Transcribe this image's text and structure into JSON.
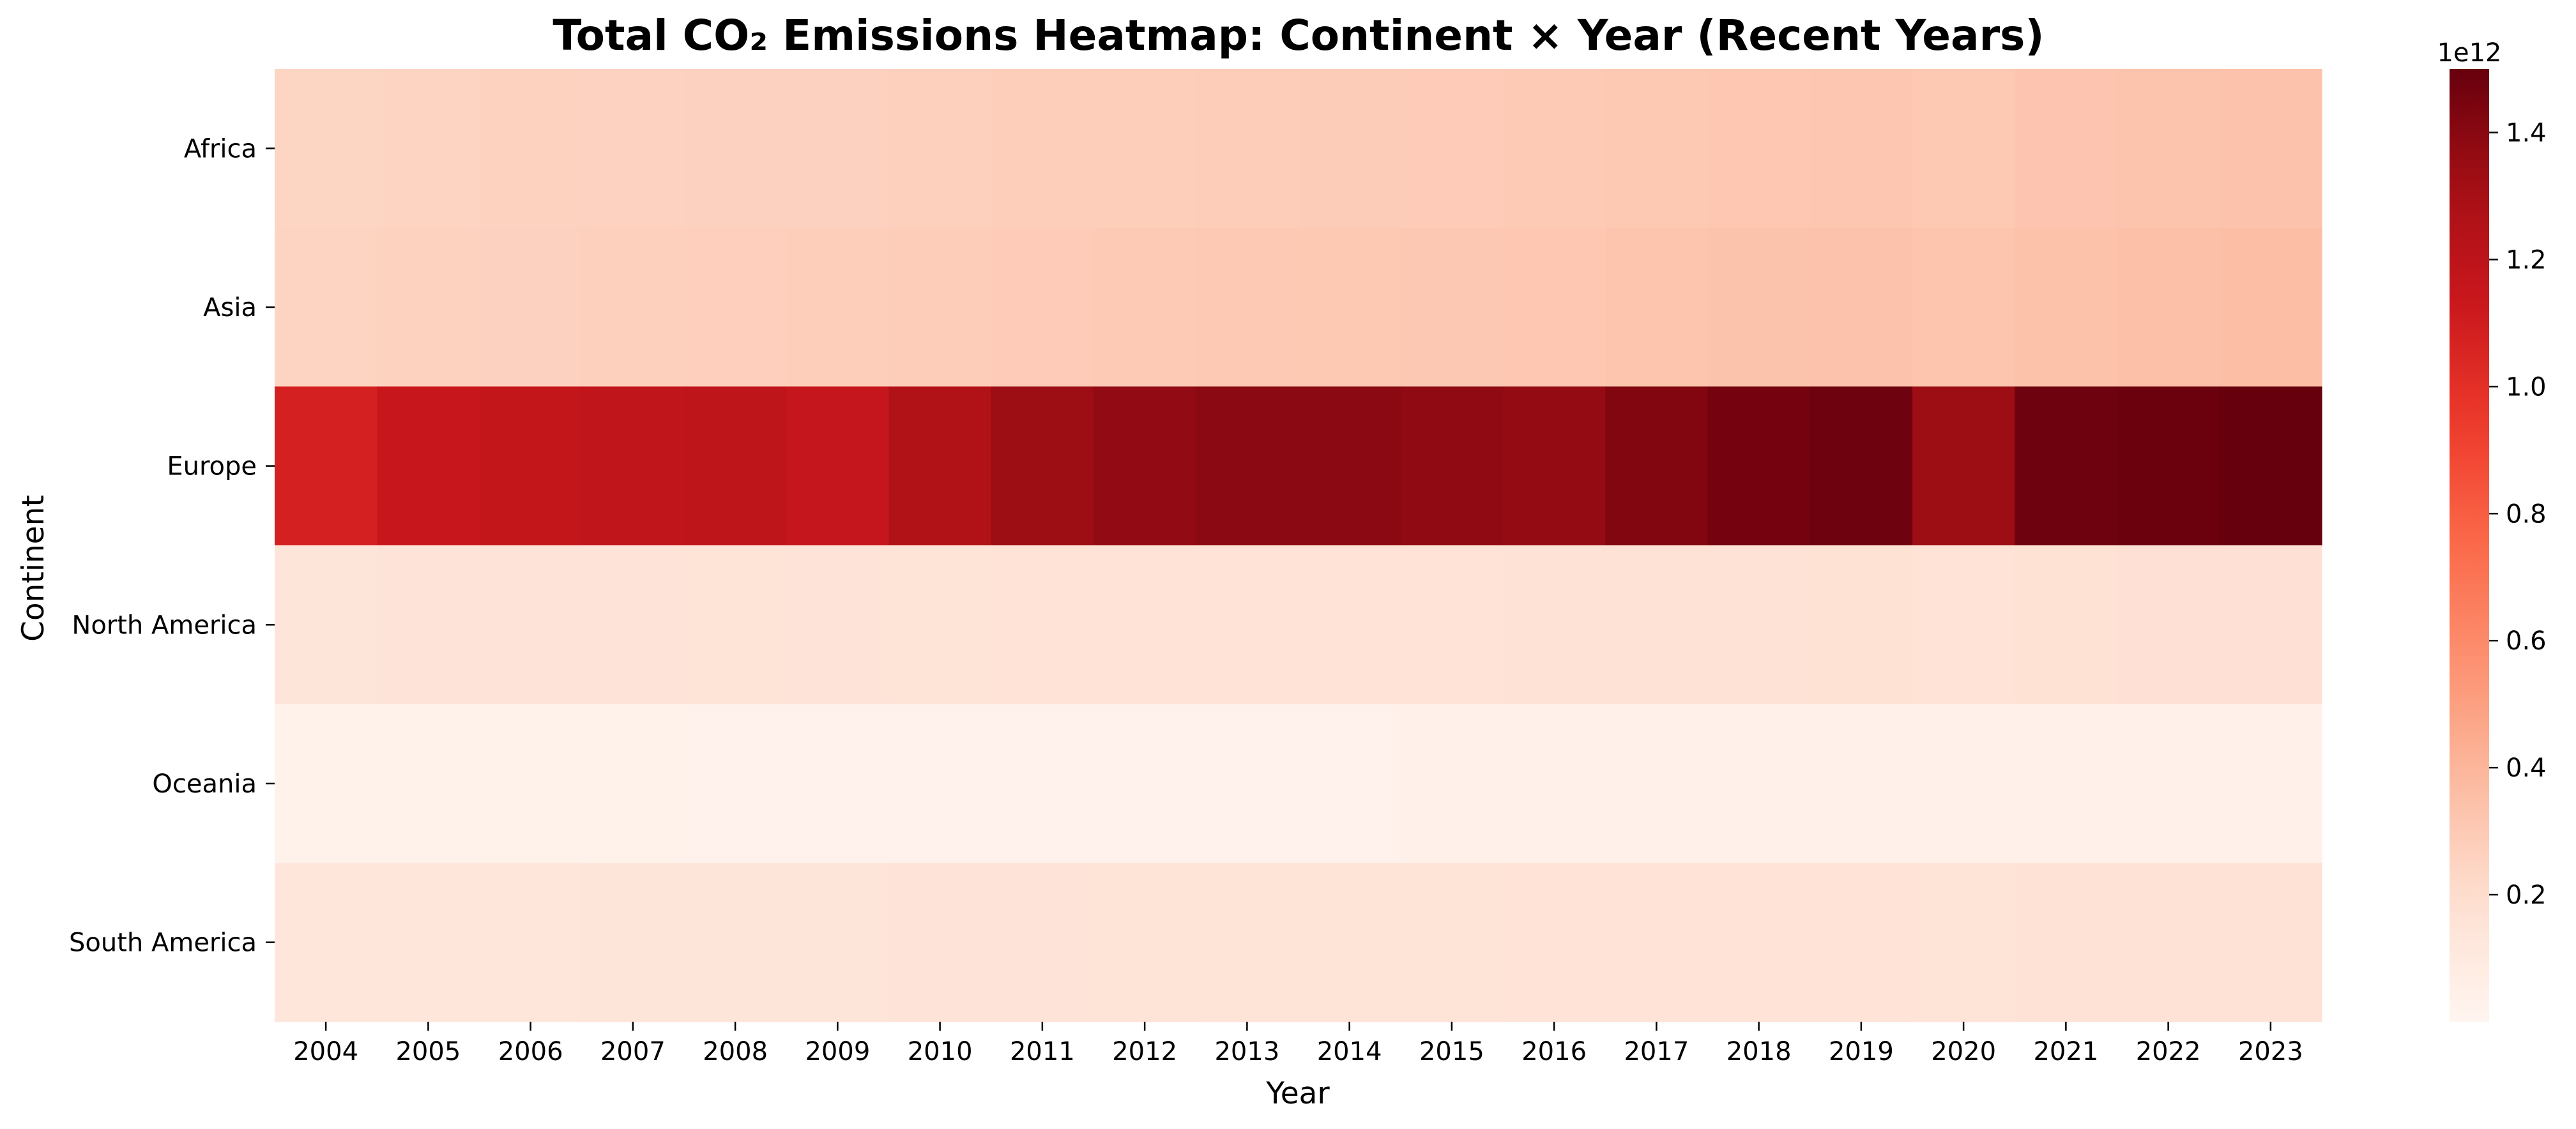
{
  "chart_data": {
    "type": "heatmap",
    "title": "Total CO₂ Emissions Heatmap: Continent × Year (Recent Years)",
    "xlabel": "Year",
    "ylabel": "Continent",
    "x": [
      "2004",
      "2005",
      "2006",
      "2007",
      "2008",
      "2009",
      "2010",
      "2011",
      "2012",
      "2013",
      "2014",
      "2015",
      "2016",
      "2017",
      "2018",
      "2019",
      "2020",
      "2021",
      "2022",
      "2023"
    ],
    "y": [
      "Africa",
      "Asia",
      "Europe",
      "North America",
      "Oceania",
      "South America"
    ],
    "values": [
      [
        0.245,
        0.25,
        0.255,
        0.258,
        0.262,
        0.262,
        0.268,
        0.275,
        0.28,
        0.285,
        0.288,
        0.292,
        0.298,
        0.305,
        0.312,
        0.318,
        0.305,
        0.322,
        0.33,
        0.338
      ],
      [
        0.25,
        0.255,
        0.262,
        0.268,
        0.272,
        0.275,
        0.285,
        0.292,
        0.298,
        0.302,
        0.305,
        0.308,
        0.315,
        0.325,
        0.332,
        0.338,
        0.325,
        0.342,
        0.35,
        0.358
      ],
      [
        1.08,
        1.14,
        1.17,
        1.18,
        1.19,
        1.16,
        1.26,
        1.34,
        1.37,
        1.39,
        1.39,
        1.38,
        1.36,
        1.42,
        1.46,
        1.48,
        1.34,
        1.48,
        1.49,
        1.5
      ],
      [
        0.145,
        0.148,
        0.15,
        0.152,
        0.154,
        0.15,
        0.158,
        0.16,
        0.162,
        0.163,
        0.164,
        0.165,
        0.166,
        0.168,
        0.17,
        0.172,
        0.165,
        0.174,
        0.176,
        0.178
      ],
      [
        0.03,
        0.03,
        0.031,
        0.031,
        0.032,
        0.032,
        0.033,
        0.033,
        0.034,
        0.034,
        0.034,
        0.035,
        0.035,
        0.035,
        0.036,
        0.036,
        0.035,
        0.036,
        0.037,
        0.037
      ],
      [
        0.13,
        0.133,
        0.136,
        0.139,
        0.142,
        0.14,
        0.148,
        0.152,
        0.155,
        0.157,
        0.158,
        0.159,
        0.16,
        0.162,
        0.163,
        0.164,
        0.158,
        0.166,
        0.168,
        0.17
      ]
    ],
    "colorbar": {
      "colormap": "Reds",
      "range": [
        0.0,
        1.5
      ],
      "ticks": [
        "0.2",
        "0.4",
        "0.6",
        "0.8",
        "1.0",
        "1.2",
        "1.4"
      ],
      "tick_values": [
        0.2,
        0.4,
        0.6,
        0.8,
        1.0,
        1.2,
        1.4
      ],
      "multiplier": "1e12"
    }
  }
}
